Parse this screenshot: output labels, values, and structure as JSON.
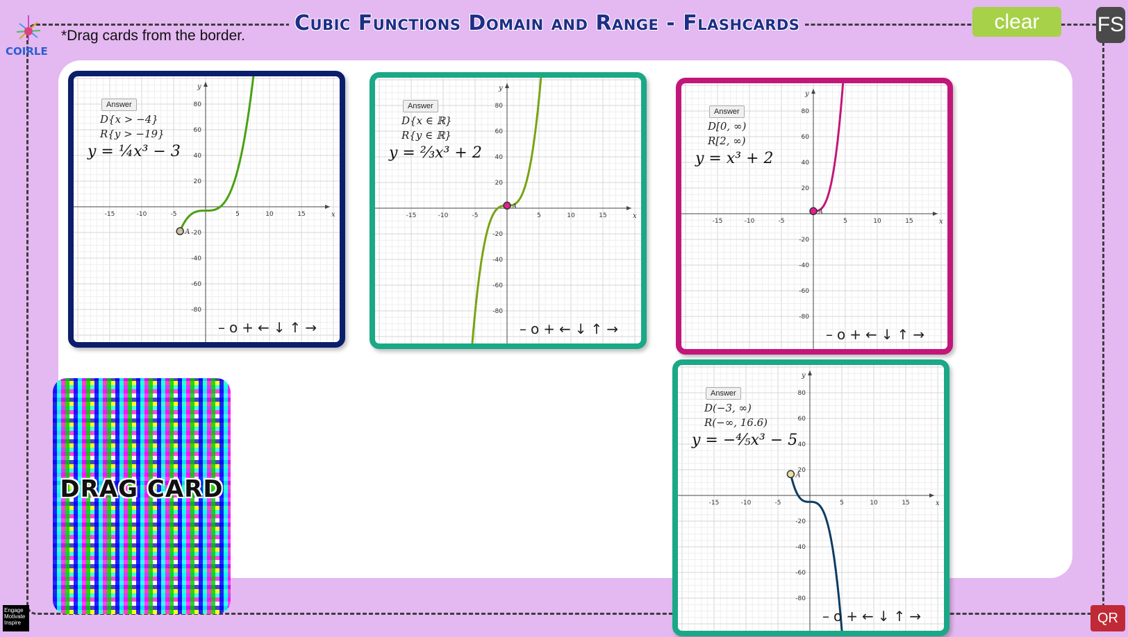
{
  "header": {
    "title": "Cubic Functions Domain and Range -  Flashcards",
    "instruction": "*Drag cards from the border.",
    "logo_text": "COIRLE"
  },
  "toolbar": {
    "clear_label": "clear",
    "fullscreen_label": "FS",
    "qr_label": "QR"
  },
  "badge": {
    "line1": "Engage",
    "line2": "Motivate",
    "line3": "Inspire"
  },
  "drag_card": {
    "label": "DRAG CARD"
  },
  "controls": {
    "minus": "–",
    "reset": "o",
    "plus": "+",
    "left": "←",
    "down": "↓",
    "up": "↑",
    "right": "→"
  },
  "graph_axes": {
    "x_label": "x",
    "y_label": "y",
    "x_ticks": [
      "-15",
      "-10",
      "-5",
      "5",
      "10",
      "15"
    ],
    "y_ticks": [
      "80",
      "60",
      "40",
      "20",
      "-20",
      "-40",
      "-60",
      "-80"
    ],
    "point_label": "A"
  },
  "cards": [
    {
      "answer_label": "Answer",
      "domain": "D{x > −4}",
      "range": "R{y > −19}",
      "equation": "y = ¼x³ − 3",
      "border_color": "#0b1e6b",
      "curve_color": "#4aa012",
      "point_color": "#c8c0a0"
    },
    {
      "answer_label": "Answer",
      "domain": "D{x ∈ ℝ}",
      "range": "R{y ∈ ℝ}",
      "equation": "y = ⅔x³ + 2",
      "border_color": "#1aa886",
      "curve_color": "#7aa314",
      "point_color": "#e0208a"
    },
    {
      "answer_label": "Answer",
      "domain": "D[0, ∞)",
      "range": "R[2, ∞)",
      "equation": "y = x³ + 2",
      "border_color": "#c2177a",
      "curve_color": "#c2177a",
      "point_color": "#e0208a"
    },
    {
      "answer_label": "Answer",
      "domain": "D(−3, ∞)",
      "range": "R(−∞, 16.6)",
      "equation": "y = −⅘x³ − 5",
      "border_color": "#1aa886",
      "curve_color": "#0d3c63",
      "point_color": "#e8e2a0"
    }
  ]
}
